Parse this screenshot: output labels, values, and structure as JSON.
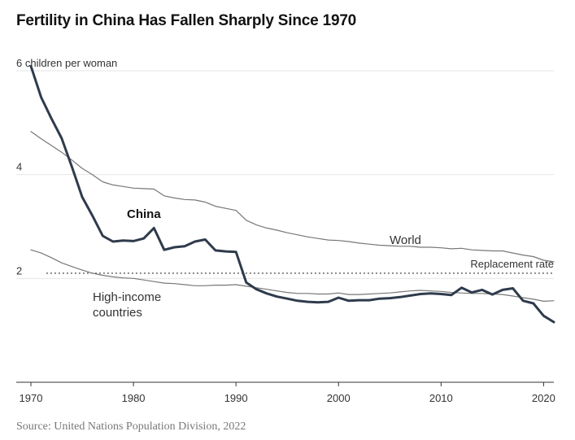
{
  "chart_data": {
    "type": "line",
    "title": "Fertility in China Has Fallen Sharply Since 1970",
    "source": "Source: United Nations Population Division, 2022",
    "xlim": [
      1970,
      2021
    ],
    "ylim": [
      0,
      6
    ],
    "y_unit_label": "children per woman",
    "x_ticks": [
      1970,
      1980,
      1990,
      2000,
      2010,
      2020
    ],
    "y_ticks": [
      2,
      4,
      6
    ],
    "grid": true,
    "replacement_rate": {
      "value": 2.1,
      "label": "Replacement rate"
    },
    "x": [
      1970,
      1971,
      1972,
      1973,
      1974,
      1975,
      1976,
      1977,
      1978,
      1979,
      1980,
      1981,
      1982,
      1983,
      1984,
      1985,
      1986,
      1987,
      1988,
      1989,
      1990,
      1991,
      1992,
      1993,
      1994,
      1995,
      1996,
      1997,
      1998,
      1999,
      2000,
      2001,
      2002,
      2003,
      2004,
      2005,
      2006,
      2007,
      2008,
      2009,
      2010,
      2011,
      2012,
      2013,
      2014,
      2015,
      2016,
      2017,
      2018,
      2019,
      2020,
      2021
    ],
    "series": [
      {
        "name": "China",
        "color": "#2f3b4c",
        "values": [
          6.09,
          5.49,
          5.08,
          4.7,
          4.15,
          3.57,
          3.21,
          2.82,
          2.71,
          2.73,
          2.72,
          2.77,
          2.97,
          2.55,
          2.6,
          2.62,
          2.71,
          2.75,
          2.54,
          2.52,
          2.51,
          1.92,
          1.79,
          1.71,
          1.65,
          1.61,
          1.57,
          1.55,
          1.54,
          1.55,
          1.63,
          1.57,
          1.58,
          1.58,
          1.61,
          1.62,
          1.64,
          1.67,
          1.7,
          1.71,
          1.7,
          1.68,
          1.82,
          1.73,
          1.78,
          1.69,
          1.78,
          1.81,
          1.57,
          1.52,
          1.28,
          1.16
        ]
      },
      {
        "name": "World",
        "color": "#777777",
        "values": [
          4.83,
          4.69,
          4.56,
          4.43,
          4.28,
          4.12,
          4.0,
          3.86,
          3.8,
          3.77,
          3.74,
          3.73,
          3.72,
          3.59,
          3.55,
          3.52,
          3.51,
          3.47,
          3.39,
          3.35,
          3.31,
          3.12,
          3.03,
          2.97,
          2.93,
          2.88,
          2.84,
          2.8,
          2.77,
          2.74,
          2.73,
          2.71,
          2.68,
          2.66,
          2.64,
          2.63,
          2.62,
          2.62,
          2.6,
          2.6,
          2.59,
          2.57,
          2.58,
          2.55,
          2.54,
          2.53,
          2.53,
          2.49,
          2.45,
          2.42,
          2.35,
          2.32
        ]
      },
      {
        "name": "High-income countries",
        "color": "#777777",
        "values": [
          2.55,
          2.49,
          2.4,
          2.3,
          2.23,
          2.16,
          2.1,
          2.06,
          2.03,
          2.01,
          2.0,
          1.97,
          1.94,
          1.91,
          1.9,
          1.88,
          1.86,
          1.86,
          1.87,
          1.87,
          1.88,
          1.85,
          1.82,
          1.79,
          1.76,
          1.73,
          1.71,
          1.71,
          1.7,
          1.7,
          1.72,
          1.69,
          1.69,
          1.7,
          1.71,
          1.72,
          1.74,
          1.76,
          1.77,
          1.76,
          1.75,
          1.73,
          1.72,
          1.71,
          1.71,
          1.7,
          1.69,
          1.66,
          1.63,
          1.6,
          1.56,
          1.57
        ]
      }
    ],
    "labels": {
      "china": "China",
      "world": "World",
      "high_income_line1": "High-income",
      "high_income_line2": "countries"
    }
  }
}
